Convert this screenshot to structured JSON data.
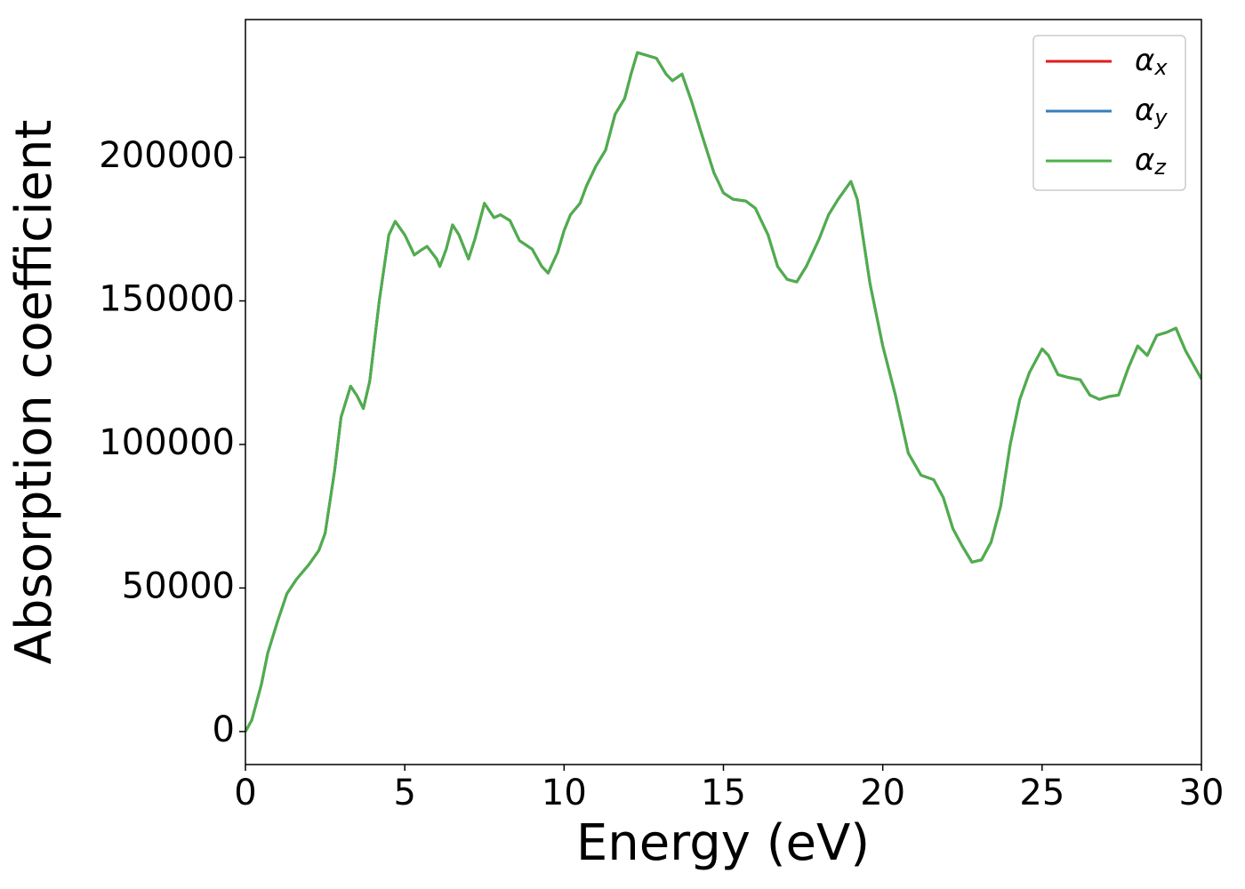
{
  "chart_data": {
    "type": "line",
    "x_label": "Energy (eV)",
    "y_label": "Absorption coefficient",
    "x": [
      0,
      0.2,
      0.5,
      0.7,
      1.0,
      1.3,
      1.6,
      2.0,
      2.3,
      2.5,
      2.8,
      3.0,
      3.3,
      3.5,
      3.7,
      3.9,
      4.2,
      4.5,
      4.7,
      5.0,
      5.3,
      5.5,
      5.7,
      6.0,
      6.1,
      6.3,
      6.5,
      6.7,
      7.0,
      7.2,
      7.5,
      7.8,
      8.0,
      8.3,
      8.6,
      9.0,
      9.3,
      9.5,
      9.8,
      10.0,
      10.2,
      10.5,
      10.7,
      11.0,
      11.3,
      11.6,
      11.9,
      12.1,
      12.3,
      12.6,
      12.9,
      13.2,
      13.4,
      13.7,
      14.0,
      14.3,
      14.7,
      15.0,
      15.3,
      15.7,
      16.0,
      16.4,
      16.7,
      17.0,
      17.3,
      17.6,
      18.0,
      18.3,
      18.6,
      19.0,
      19.2,
      19.6,
      20.0,
      20.4,
      20.8,
      21.2,
      21.6,
      21.9,
      22.2,
      22.5,
      22.8,
      23.1,
      23.4,
      23.7,
      24.0,
      24.3,
      24.6,
      25.0,
      25.2,
      25.5,
      25.8,
      26.2,
      26.5,
      26.8,
      27.1,
      27.4,
      27.7,
      28.0,
      28.3,
      28.6,
      28.9,
      29.2,
      29.5,
      30.0
    ],
    "series": [
      {
        "name": "αx",
        "color": "#e41a1c",
        "values": [
          0,
          4000,
          16400,
          27300,
          38100,
          48000,
          53000,
          58300,
          63000,
          69000,
          91000,
          109500,
          120300,
          117000,
          112500,
          122000,
          150000,
          173000,
          177700,
          173000,
          166000,
          167600,
          169000,
          164600,
          162000,
          168000,
          176500,
          173000,
          164600,
          171500,
          184000,
          179000,
          180000,
          178000,
          171000,
          168000,
          162000,
          159700,
          167000,
          174500,
          180000,
          184000,
          190000,
          197000,
          202500,
          215000,
          220500,
          229000,
          236500,
          235500,
          234500,
          229000,
          226700,
          229000,
          219500,
          208700,
          194700,
          187600,
          185400,
          184800,
          182300,
          173000,
          162000,
          157500,
          156600,
          162000,
          171500,
          180000,
          185400,
          191600,
          185400,
          156000,
          134300,
          117000,
          97000,
          89300,
          87700,
          81500,
          70700,
          64500,
          59000,
          59800,
          66000,
          78500,
          100000,
          115700,
          125000,
          133300,
          131000,
          124300,
          123400,
          122500,
          117200,
          115700,
          116700,
          117200,
          126500,
          134300,
          131000,
          138000,
          139000,
          140500,
          132700,
          122800
        ]
      },
      {
        "name": "αy",
        "color": "#377eb8",
        "values": [
          0,
          4000,
          16400,
          27300,
          38100,
          48000,
          53000,
          58300,
          63000,
          69000,
          91000,
          109500,
          120300,
          117000,
          112500,
          122000,
          150000,
          173000,
          177700,
          173000,
          166000,
          167600,
          169000,
          164600,
          162000,
          168000,
          176500,
          173000,
          164600,
          171500,
          184000,
          179000,
          180000,
          178000,
          171000,
          168000,
          162000,
          159700,
          167000,
          174500,
          180000,
          184000,
          190000,
          197000,
          202500,
          215000,
          220500,
          229000,
          236500,
          235500,
          234500,
          229000,
          226700,
          229000,
          219500,
          208700,
          194700,
          187600,
          185400,
          184800,
          182300,
          173000,
          162000,
          157500,
          156600,
          162000,
          171500,
          180000,
          185400,
          191600,
          185400,
          156000,
          134300,
          117000,
          97000,
          89300,
          87700,
          81500,
          70700,
          64500,
          59000,
          59800,
          66000,
          78500,
          100000,
          115700,
          125000,
          133300,
          131000,
          124300,
          123400,
          122500,
          117200,
          115700,
          116700,
          117200,
          126500,
          134300,
          131000,
          138000,
          139000,
          140500,
          132700,
          122800
        ]
      },
      {
        "name": "αz",
        "color": "#4daf4a",
        "values": [
          0,
          4000,
          16400,
          27300,
          38100,
          48000,
          53000,
          58300,
          63000,
          69000,
          91000,
          109500,
          120300,
          117000,
          112500,
          122000,
          150000,
          173000,
          177700,
          173000,
          166000,
          167600,
          169000,
          164600,
          162000,
          168000,
          176500,
          173000,
          164600,
          171500,
          184000,
          179000,
          180000,
          178000,
          171000,
          168000,
          162000,
          159700,
          167000,
          174500,
          180000,
          184000,
          190000,
          197000,
          202500,
          215000,
          220500,
          229000,
          236500,
          235500,
          234500,
          229000,
          226700,
          229000,
          219500,
          208700,
          194700,
          187600,
          185400,
          184800,
          182300,
          173000,
          162000,
          157500,
          156600,
          162000,
          171500,
          180000,
          185400,
          191600,
          185400,
          156000,
          134300,
          117000,
          97000,
          89300,
          87700,
          81500,
          70700,
          64500,
          59000,
          59800,
          66000,
          78500,
          100000,
          115700,
          125000,
          133300,
          131000,
          124300,
          123400,
          122500,
          117200,
          115700,
          116700,
          117200,
          126500,
          134300,
          131000,
          138000,
          139000,
          140500,
          132700,
          122800
        ]
      }
    ],
    "xlim": [
      0,
      30
    ],
    "xticks": [
      0,
      5,
      10,
      15,
      20,
      25,
      30
    ],
    "ylim": [
      -11500,
      248000
    ],
    "yticks": [
      0,
      50000,
      100000,
      150000,
      200000
    ],
    "grid": false,
    "legend": "upper right"
  }
}
